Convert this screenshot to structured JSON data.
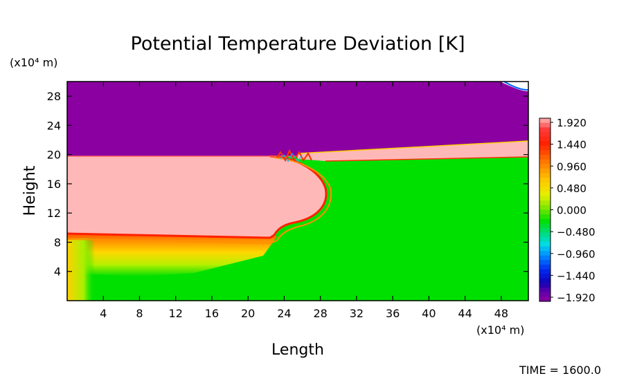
{
  "chart_data": {
    "type": "heatmap",
    "title": "Potential Temperature Deviation [K]",
    "xlabel": "Length",
    "ylabel": "Height",
    "x_unit": "(x10⁴ m)",
    "y_unit": "(x10⁴ m)",
    "x_ticks": [
      4,
      8,
      12,
      16,
      20,
      24,
      28,
      32,
      36,
      40,
      44,
      48
    ],
    "y_ticks": [
      4,
      8,
      12,
      16,
      20,
      24,
      28
    ],
    "xlim": [
      0,
      51
    ],
    "ylim": [
      0,
      30
    ],
    "colorbar": {
      "labels": [
        "1.920",
        "1.440",
        "0.960",
        "0.480",
        "0.000",
        "−0.480",
        "−0.960",
        "−1.440",
        "−1.920"
      ],
      "range": [
        -1.92,
        1.92
      ]
    },
    "regions": [
      {
        "name": "upper-layer",
        "value": -1.92,
        "color": "#8b00a0"
      },
      {
        "name": "warm-layer",
        "value": 1.92,
        "color": "#ffb8b8"
      },
      {
        "name": "ambient",
        "value": 0.0,
        "color": "#00e000"
      }
    ],
    "time_label": "TIME = 1600.0"
  }
}
